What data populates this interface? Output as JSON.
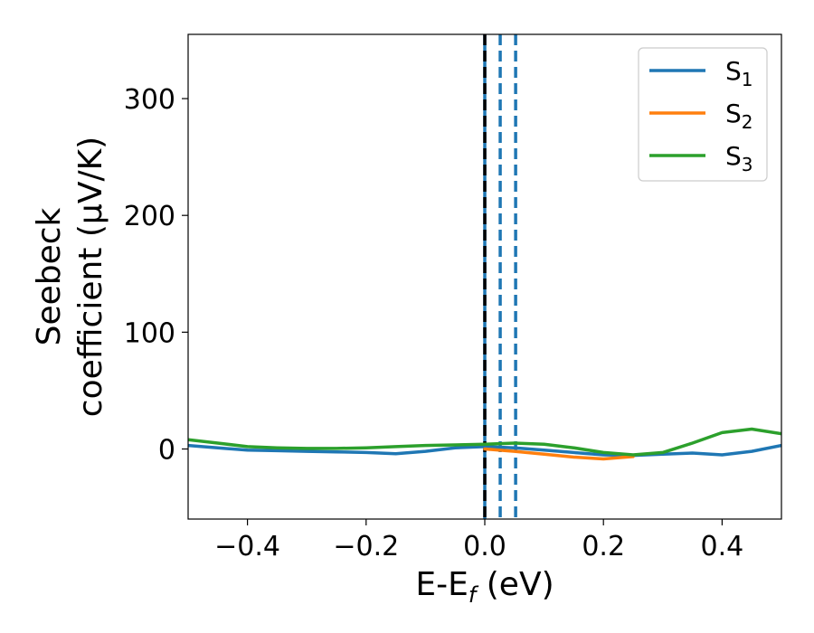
{
  "chart_data": {
    "type": "line",
    "xlabel": "E-E",
    "xlabel_sub": "f",
    "xlabel_unit": " (eV)",
    "ylabel_line1": "Seebeck",
    "ylabel_line2": "coefficient  (μV/K)",
    "xlim": [
      -0.5,
      0.5
    ],
    "ylim": [
      -60,
      355
    ],
    "xticks": [
      -0.4,
      -0.2,
      0.0,
      0.2,
      0.4
    ],
    "xtick_labels": [
      "−0.4",
      "−0.2",
      "0.0",
      "0.2",
      "0.4"
    ],
    "yticks": [
      0,
      100,
      200,
      300
    ],
    "ytick_labels": [
      "0",
      "100",
      "200",
      "300"
    ],
    "grid": false,
    "legend_position": "top-right",
    "series": [
      {
        "name": "S",
        "sub": "1",
        "color": "#1f77b4",
        "x": [
          -0.5,
          -0.45,
          -0.4,
          -0.35,
          -0.3,
          -0.25,
          -0.2,
          -0.15,
          -0.1,
          -0.05,
          0.0,
          0.05,
          0.1,
          0.15,
          0.2,
          0.25,
          0.3,
          0.35,
          0.4,
          0.45,
          0.5
        ],
        "y": [
          3,
          1,
          -1,
          -1.5,
          -2,
          -2.5,
          -3,
          -4,
          -2,
          1,
          2,
          1,
          -1,
          -3,
          -5,
          -5.5,
          -4.5,
          -3.5,
          -5,
          -2,
          3
        ]
      },
      {
        "name": "S",
        "sub": "2",
        "color": "#ff7f0e",
        "x": [
          0.0,
          0.05,
          0.1,
          0.15,
          0.2,
          0.25
        ],
        "y": [
          0,
          -2,
          -4.5,
          -7,
          -8.5,
          -6.5
        ]
      },
      {
        "name": "S",
        "sub": "3",
        "color": "#2ca02c",
        "x": [
          -0.5,
          -0.45,
          -0.4,
          -0.35,
          -0.3,
          -0.25,
          -0.2,
          -0.15,
          -0.1,
          -0.05,
          0.0,
          0.05,
          0.1,
          0.15,
          0.2,
          0.25,
          0.3,
          0.35,
          0.4,
          0.45,
          0.5
        ],
        "y": [
          8,
          5,
          2,
          1,
          0.5,
          0.5,
          1,
          2,
          3,
          3.5,
          4,
          5,
          4,
          1,
          -3,
          -5,
          -3,
          5,
          14,
          17,
          13
        ]
      }
    ],
    "vlines": [
      {
        "x": 0.0,
        "style": "solid",
        "color": "#1f77b4"
      },
      {
        "x": 0.0,
        "style": "dashed",
        "color": "#000000"
      },
      {
        "x": 0.026,
        "style": "dashed",
        "color": "#1f77b4"
      },
      {
        "x": 0.052,
        "style": "dashed",
        "color": "#1f77b4"
      }
    ]
  }
}
